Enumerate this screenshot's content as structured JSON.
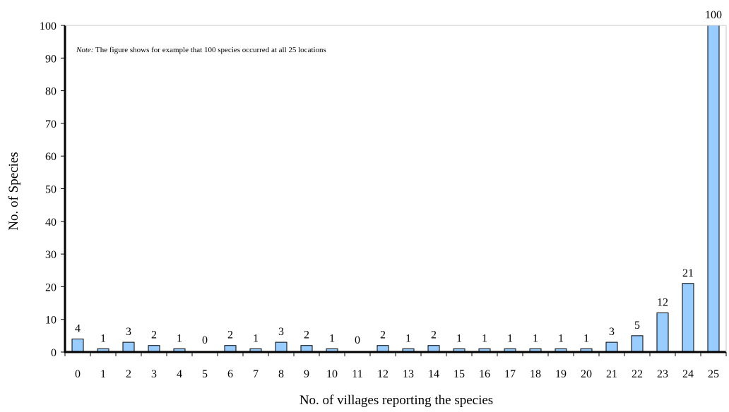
{
  "chart_data": {
    "type": "bar",
    "title": "",
    "xlabel": "No. of villages reporting the species",
    "ylabel": "No. of Species",
    "categories": [
      "0",
      "1",
      "2",
      "3",
      "4",
      "5",
      "6",
      "7",
      "8",
      "9",
      "10",
      "11",
      "12",
      "13",
      "14",
      "15",
      "16",
      "17",
      "18",
      "19",
      "20",
      "21",
      "22",
      "23",
      "24",
      "25"
    ],
    "values": [
      4,
      1,
      3,
      2,
      1,
      0,
      2,
      1,
      3,
      2,
      1,
      0,
      2,
      1,
      2,
      1,
      1,
      1,
      1,
      1,
      1,
      3,
      5,
      12,
      21,
      100
    ],
    "ylim": [
      0,
      100
    ],
    "yticks": [
      0,
      10,
      20,
      30,
      40,
      50,
      60,
      70,
      80,
      90,
      100
    ],
    "grid": false,
    "bar_color": "#99ccff",
    "note": {
      "prefix": "Note:",
      "text": " The figure shows for example that 100 species occurred at all 25 locations"
    }
  }
}
